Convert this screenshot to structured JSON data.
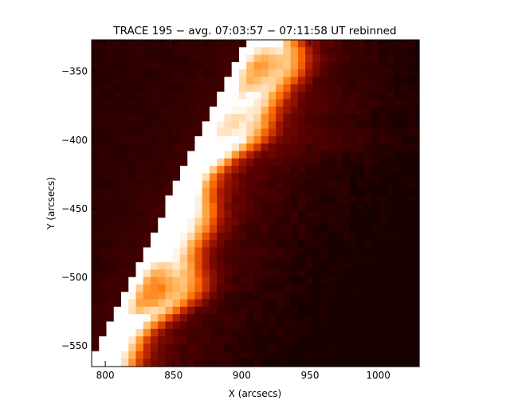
{
  "chart_data": {
    "type": "heatmap",
    "title": "TRACE 195 − avg. 07:03:57 − 07:11:58 UT rebinned",
    "xlabel": "X (arcsecs)",
    "ylabel": "Y (arcsecs)",
    "xlim": [
      790,
      1030
    ],
    "ylim": [
      -565,
      -327
    ],
    "x_ticks": [
      800,
      850,
      900,
      950,
      1000
    ],
    "x_tick_labels": [
      "800",
      "850",
      "900",
      "950",
      "1000"
    ],
    "y_ticks": [
      -350,
      -400,
      -450,
      -500,
      -550
    ],
    "y_tick_labels": [
      "−350",
      "−400",
      "−450",
      "−500",
      "−550"
    ],
    "pixel_size_arcsec": 5.4,
    "colormap": "red-temperature",
    "colormap_stops": [
      "#000000",
      "#5a0000",
      "#b41e00",
      "#ff6e00",
      "#ffb860",
      "#ffffff"
    ],
    "grid": false,
    "legend": "none",
    "features": {
      "limb_bright_edge": "diagonal white/orange emission band running from lower-left (~795, -555) to upper-middle (~895, -350)",
      "off_limb": "dark region in upper-left corner",
      "on_disk": "red structures fading to dark toward lower-right"
    }
  }
}
